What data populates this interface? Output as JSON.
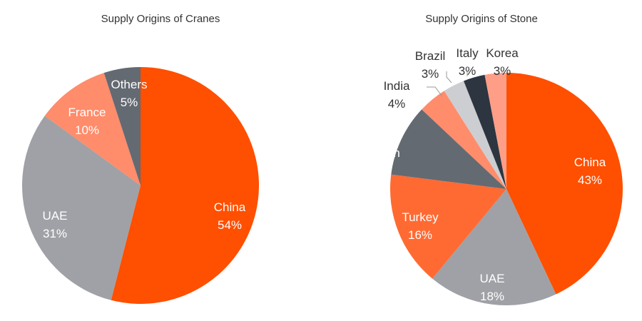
{
  "charts": [
    {
      "id": "cranes",
      "title": "Supply Origins of Cranes",
      "chart_data": {
        "type": "pie",
        "title": "Supply Origins of Cranes",
        "categories": [
          "China",
          "UAE",
          "France",
          "Others"
        ],
        "values": [
          54,
          31,
          10,
          5
        ],
        "value_labels": [
          "54%",
          "31%",
          "10%",
          "5%"
        ],
        "colors": [
          "#FF4F00",
          "#9FA1A6",
          "#FF8C6B",
          "#646A72"
        ],
        "label_colors": [
          "#ffffff",
          "#ffffff",
          "#ffffff",
          "#ffffff"
        ]
      }
    },
    {
      "id": "stone",
      "title": "Supply Origins of Stone",
      "chart_data": {
        "type": "pie",
        "title": "Supply Origins of Stone",
        "categories": [
          "China",
          "UAE",
          "Turkey",
          "Afghanistan",
          "India",
          "Brazil",
          "Italy",
          "Korea"
        ],
        "values": [
          43,
          18,
          16,
          10,
          4,
          3,
          3,
          3
        ],
        "value_labels": [
          "43%",
          "18%",
          "16%",
          "10%",
          "4%",
          "3%",
          "3%",
          "3%"
        ],
        "colors": [
          "#FF4F00",
          "#9FA1A6",
          "#FF6A33",
          "#646A72",
          "#FF8C6B",
          "#CDCED1",
          "#2C3540",
          "#FF9E86"
        ],
        "label_colors": [
          "#ffffff",
          "#ffffff",
          "#ffffff",
          "#ffffff",
          "#333333",
          "#333333",
          "#333333",
          "#333333"
        ]
      }
    }
  ]
}
